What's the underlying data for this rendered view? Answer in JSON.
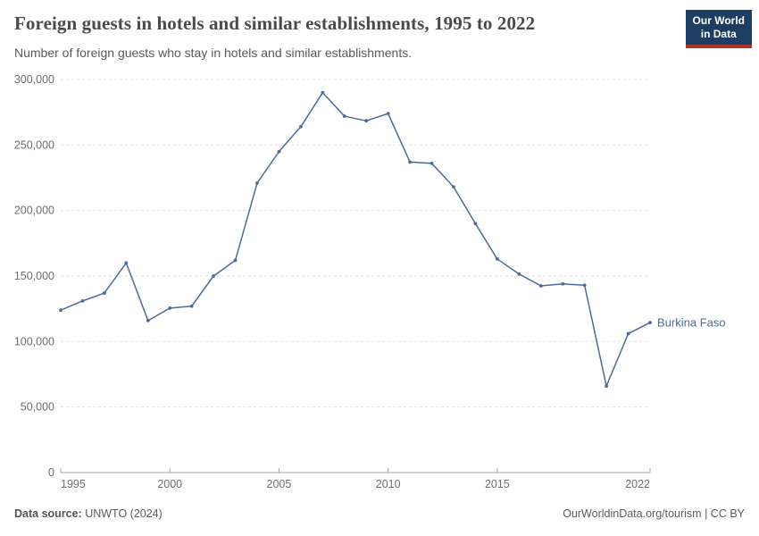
{
  "header": {
    "title": "Foreign guests in hotels and similar establishments, 1995 to 2022",
    "subtitle": "Number of foreign guests who stay in hotels and similar establishments.",
    "logo_line1": "Our World",
    "logo_line2": "in Data"
  },
  "chart_data": {
    "type": "line",
    "title": "Foreign guests in hotels and similar establishments, 1995 to 2022",
    "xlabel": "",
    "ylabel": "",
    "grid": true,
    "legend_position": "end-of-line-label",
    "xlim": [
      1995,
      2022
    ],
    "ylim": [
      0,
      300000
    ],
    "x": [
      1995,
      1996,
      1997,
      1998,
      1999,
      2000,
      2001,
      2002,
      2003,
      2004,
      2005,
      2006,
      2007,
      2008,
      2009,
      2010,
      2011,
      2012,
      2013,
      2014,
      2015,
      2016,
      2017,
      2018,
      2019,
      2020,
      2021,
      2022
    ],
    "series": [
      {
        "name": "Burkina Faso",
        "color": "#4c6a9c",
        "values": [
          124000,
          131000,
          137000,
          160000,
          116000,
          125500,
          127000,
          150000,
          162000,
          221000,
          245000,
          264000,
          290000,
          272000,
          268500,
          274000,
          237000,
          236000,
          218000,
          190000,
          163000,
          151500,
          142500,
          144000,
          143000,
          66000,
          106000,
          114500
        ]
      }
    ],
    "y_ticks": [
      {
        "value": 0,
        "label": "0"
      },
      {
        "value": 50000,
        "label": "50,000"
      },
      {
        "value": 100000,
        "label": "100,000"
      },
      {
        "value": 150000,
        "label": "150,000"
      },
      {
        "value": 200000,
        "label": "200,000"
      },
      {
        "value": 250000,
        "label": "250,000"
      },
      {
        "value": 300000,
        "label": "300,000"
      }
    ],
    "x_ticks": [
      {
        "year": 1995,
        "label": "1995"
      },
      {
        "year": 2000,
        "label": "2000"
      },
      {
        "year": 2005,
        "label": "2005"
      },
      {
        "year": 2010,
        "label": "2010"
      },
      {
        "year": 2015,
        "label": "2015"
      },
      {
        "year": 2022,
        "label": "2022"
      }
    ],
    "colors": {
      "gridline": "#e2e2e2",
      "axis": "#a5a5a5",
      "tick_text": "#6e6e6e"
    }
  },
  "footer": {
    "source_label": "Data source:",
    "source_value": " UNWTO (2024)",
    "credit": "OurWorldinData.org/tourism | CC BY"
  }
}
